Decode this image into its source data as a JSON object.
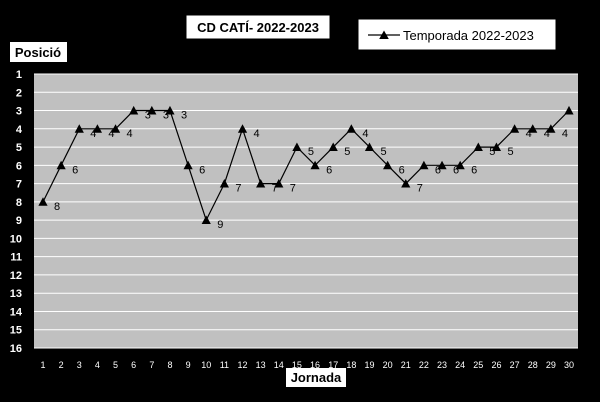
{
  "chart_data": {
    "type": "line",
    "title": "CD CATÍ- 2022-2023",
    "ylabel": "Posició",
    "xlabel": "Jornada",
    "x": [
      1,
      2,
      3,
      4,
      5,
      6,
      7,
      8,
      9,
      10,
      11,
      12,
      13,
      14,
      15,
      16,
      17,
      18,
      19,
      20,
      21,
      22,
      23,
      24,
      25,
      26,
      27,
      28,
      29,
      30
    ],
    "series": [
      {
        "name": "Temporada 2022-2023",
        "values": [
          8,
          6,
          4,
          4,
          4,
          3,
          3,
          3,
          6,
          9,
          7,
          4,
          7,
          7,
          5,
          6,
          5,
          4,
          5,
          6,
          7,
          6,
          6,
          6,
          5,
          5,
          4,
          4,
          4,
          3
        ]
      }
    ],
    "ylim": [
      16,
      1
    ],
    "y_inverted": true,
    "yticks": [
      1,
      2,
      3,
      4,
      5,
      6,
      7,
      8,
      9,
      10,
      11,
      12,
      13,
      14,
      15,
      16
    ],
    "grid": true,
    "legend_position": "top-right",
    "colors": {
      "background": "#000000",
      "plot_area": "#c0c0c0",
      "label_box": "#ffffff",
      "gridline": "#ffffff",
      "series": "#000000",
      "axis_text": "#ffffff"
    },
    "marker": "triangle"
  }
}
